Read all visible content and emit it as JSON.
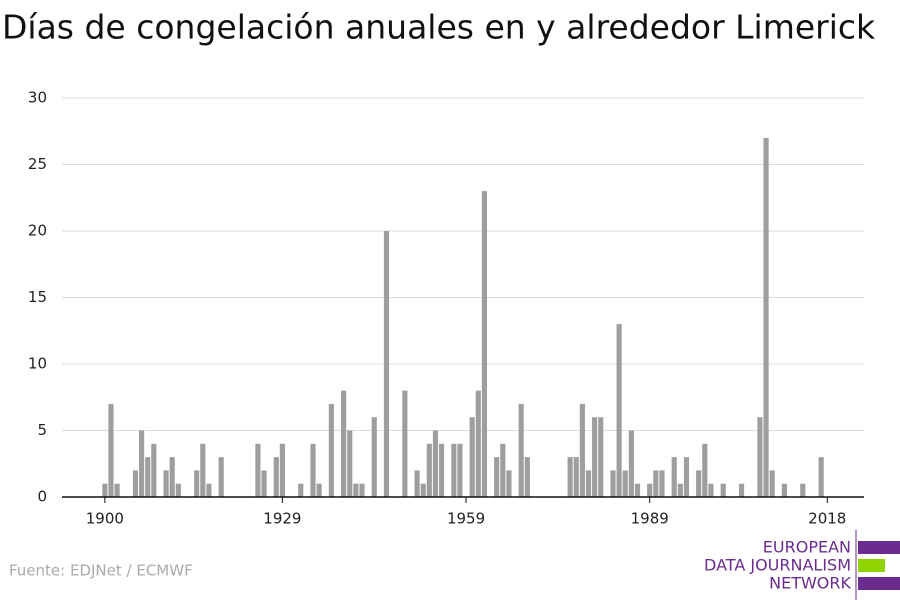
{
  "chart_data": {
    "type": "bar",
    "title": "Días de congelación anuales en y alrededor Limerick",
    "source": "Fuente: EDJNet / ECMWF",
    "logo": [
      "EUROPEAN",
      "DATA JOURNALISM",
      "NETWORK"
    ],
    "color": "#9e9e9e",
    "grid": true,
    "x": [
      1900,
      1901,
      1902,
      1903,
      1904,
      1905,
      1906,
      1907,
      1908,
      1909,
      1910,
      1911,
      1912,
      1913,
      1914,
      1915,
      1916,
      1917,
      1918,
      1919,
      1920,
      1921,
      1922,
      1923,
      1924,
      1925,
      1926,
      1927,
      1928,
      1929,
      1930,
      1931,
      1932,
      1933,
      1934,
      1935,
      1936,
      1937,
      1938,
      1939,
      1940,
      1941,
      1942,
      1943,
      1944,
      1945,
      1946,
      1947,
      1948,
      1949,
      1950,
      1951,
      1952,
      1953,
      1954,
      1955,
      1956,
      1957,
      1958,
      1959,
      1960,
      1961,
      1962,
      1963,
      1964,
      1965,
      1966,
      1967,
      1968,
      1969,
      1970,
      1971,
      1972,
      1973,
      1974,
      1975,
      1976,
      1977,
      1978,
      1979,
      1980,
      1981,
      1982,
      1983,
      1984,
      1985,
      1986,
      1987,
      1988,
      1989,
      1990,
      1991,
      1992,
      1993,
      1994,
      1995,
      1996,
      1997,
      1998,
      1999,
      2000,
      2001,
      2002,
      2003,
      2004,
      2005,
      2006,
      2007,
      2008,
      2009,
      2010,
      2011,
      2012,
      2013,
      2014,
      2015,
      2016,
      2017
    ],
    "values": [
      1,
      7,
      1,
      0,
      0,
      2,
      5,
      3,
      4,
      0,
      2,
      3,
      1,
      0,
      0,
      2,
      4,
      1,
      0,
      3,
      0,
      0,
      0,
      0,
      0,
      4,
      2,
      0,
      3,
      4,
      0,
      0,
      1,
      0,
      4,
      1,
      0,
      7,
      0,
      8,
      5,
      1,
      1,
      0,
      6,
      0,
      20,
      0,
      0,
      8,
      0,
      2,
      1,
      4,
      5,
      4,
      0,
      4,
      4,
      0,
      6,
      8,
      23,
      0,
      3,
      4,
      2,
      0,
      7,
      3,
      0,
      0,
      0,
      0,
      0,
      0,
      3,
      3,
      7,
      2,
      6,
      6,
      0,
      2,
      13,
      2,
      5,
      1,
      0,
      1,
      2,
      2,
      0,
      3,
      1,
      3,
      0,
      2,
      4,
      1,
      0,
      1,
      0,
      0,
      1,
      0,
      0,
      6,
      27,
      2,
      0,
      1,
      0,
      0,
      1,
      0,
      0,
      3
    ],
    "xlim": [
      1893,
      2024
    ],
    "xticks": [
      1900,
      1929,
      1959,
      1989,
      2018
    ],
    "ylim": [
      0,
      30
    ],
    "yticks": [
      0,
      5,
      10,
      15,
      20,
      25,
      30
    ]
  }
}
